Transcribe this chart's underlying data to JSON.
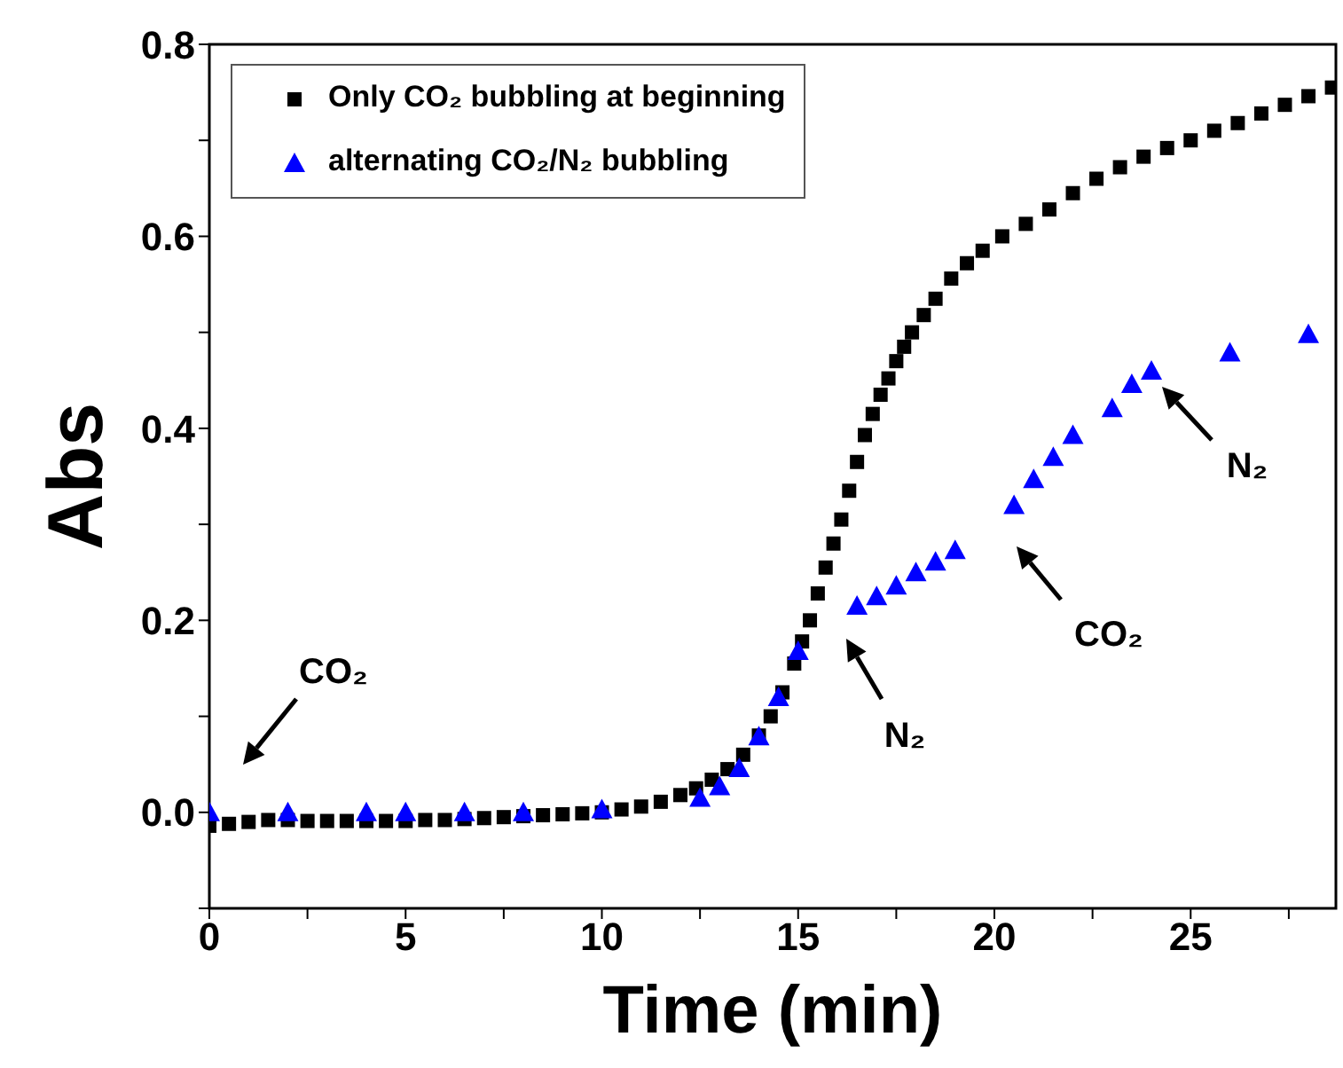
{
  "chart_data": {
    "type": "scatter",
    "xlabel": "Time (min)",
    "ylabel": "Abs",
    "xlim": [
      0,
      28.7
    ],
    "ylim": [
      -0.1,
      0.8
    ],
    "xticks": [
      0,
      {
        "value": 2.5,
        "label": null
      },
      5,
      {
        "value": 7.5,
        "label": null
      },
      10,
      {
        "value": 12.5,
        "label": null
      },
      15,
      {
        "value": 17.5,
        "label": null
      },
      20,
      {
        "value": 22.5,
        "label": null
      },
      25,
      {
        "value": 27.5,
        "label": null
      }
    ],
    "yticks": [
      {
        "value": -0.1,
        "label": null
      },
      {
        "value": 0,
        "label": "0.0"
      },
      {
        "value": 0.1,
        "label": null
      },
      {
        "value": 0.2,
        "label": "0.2"
      },
      {
        "value": 0.3,
        "label": null
      },
      {
        "value": 0.4,
        "label": "0.4"
      },
      {
        "value": 0.5,
        "label": null
      },
      {
        "value": 0.6,
        "label": "0.6"
      },
      {
        "value": 0.7,
        "label": null
      },
      {
        "value": 0.8,
        "label": "0.8"
      }
    ],
    "legend": "top left",
    "grid": false,
    "series": [
      {
        "name": "Only CO₂ bubbling at beginning",
        "color": "#000000",
        "marker": "square",
        "x": [
          0,
          0.5,
          1,
          1.5,
          2,
          2.5,
          3,
          3.5,
          4,
          4.5,
          5,
          5.5,
          6,
          6.5,
          7,
          7.5,
          8,
          8.5,
          9,
          9.5,
          10,
          10.5,
          11,
          11.5,
          12,
          12.4,
          12.8,
          13.2,
          13.6,
          14,
          14.3,
          14.6,
          14.9,
          15.1,
          15.3,
          15.5,
          15.7,
          15.9,
          16.1,
          16.3,
          16.5,
          16.7,
          16.9,
          17.1,
          17.3,
          17.5,
          17.7,
          17.9,
          18.2,
          18.5,
          18.9,
          19.3,
          19.7,
          20.2,
          20.8,
          21.4,
          22,
          22.6,
          23.2,
          23.8,
          24.4,
          25,
          25.6,
          26.2,
          26.8,
          27.4,
          28,
          28.6
        ],
        "values": [
          -0.014,
          -0.012,
          -0.01,
          -0.008,
          -0.008,
          -0.009,
          -0.009,
          -0.009,
          -0.009,
          -0.009,
          -0.009,
          -0.008,
          -0.008,
          -0.007,
          -0.006,
          -0.005,
          -0.004,
          -0.003,
          -0.002,
          -0.001,
          0,
          0.003,
          0.006,
          0.011,
          0.018,
          0.025,
          0.034,
          0.045,
          0.06,
          0.08,
          0.1,
          0.125,
          0.155,
          0.178,
          0.2,
          0.228,
          0.255,
          0.28,
          0.305,
          0.335,
          0.365,
          0.393,
          0.415,
          0.435,
          0.452,
          0.47,
          0.485,
          0.5,
          0.518,
          0.535,
          0.556,
          0.572,
          0.585,
          0.6,
          0.613,
          0.628,
          0.645,
          0.66,
          0.672,
          0.683,
          0.692,
          0.7,
          0.71,
          0.718,
          0.728,
          0.737,
          0.746,
          0.755
        ]
      },
      {
        "name": "alternating CO₂/N₂ bubbling",
        "color": "#0000ff",
        "marker": "triangle",
        "x": [
          0,
          2,
          4,
          5,
          6.5,
          8,
          10,
          12.5,
          13,
          13.5,
          14,
          14.5,
          15,
          16.5,
          17,
          17.5,
          18,
          18.5,
          19,
          20.5,
          21,
          21.5,
          22,
          23,
          23.5,
          24,
          26,
          28
        ],
        "values": [
          0,
          0,
          0,
          0,
          0,
          0,
          0.003,
          0.015,
          0.027,
          0.046,
          0.079,
          0.12,
          0.168,
          0.215,
          0.225,
          0.236,
          0.25,
          0.261,
          0.273,
          0.32,
          0.347,
          0.37,
          0.393,
          0.421,
          0.446,
          0.46,
          0.479,
          0.498
        ]
      }
    ],
    "annotations": [
      "CO₂",
      "N₂",
      "CO₂",
      "N₂"
    ]
  }
}
